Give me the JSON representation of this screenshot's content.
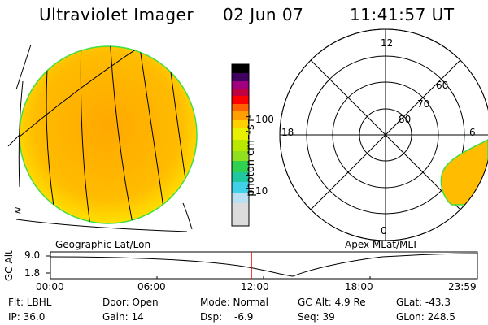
{
  "header": {
    "instrument": "Ultraviolet Imager",
    "date": "02 Jun 07",
    "time": "11:41:57 UT"
  },
  "colorbar": {
    "label": "photon cm⁻²s⁻¹",
    "ticks": [
      "100",
      "10"
    ],
    "colors": [
      "#dcdcdc",
      "#b8e0f0",
      "#40d0e8",
      "#20c8a0",
      "#30d050",
      "#90e020",
      "#e8f000",
      "#ffd000",
      "#ffa000",
      "#ff6000",
      "#ff0000",
      "#c00040",
      "#a00080",
      "#400060",
      "#000000"
    ]
  },
  "map_left": {
    "label": "Geographic Lat/Lon",
    "disk_color": "#ffb000",
    "rim_color": "#40e040"
  },
  "map_right": {
    "label": "Apex MLat/MLT",
    "mlt_labels": {
      "top": "12",
      "left": "18",
      "right": "6",
      "bottom": "0"
    },
    "lat_labels": [
      "60",
      "70",
      "80"
    ]
  },
  "timeline": {
    "ylabel": "GC Alt",
    "yticks": [
      "9.0",
      "1.8"
    ],
    "xticks": [
      "00:00",
      "06:00",
      "12:00",
      "18:00",
      "23:59"
    ],
    "current_marker_color": "#ff0000"
  },
  "status": {
    "flt": "Flt: LBHL",
    "door": "Door: Open",
    "mode": "Mode: Normal",
    "gcalt": "GC Alt: 4.9 Re",
    "glat": "GLat: -43.3",
    "ip": "IP: 36.0",
    "gain": "Gain: 14",
    "dsp": "Dsp:",
    "dsp_value": "-6.9",
    "seq": "Seq: 39",
    "glon": "GLon: 248.5"
  }
}
